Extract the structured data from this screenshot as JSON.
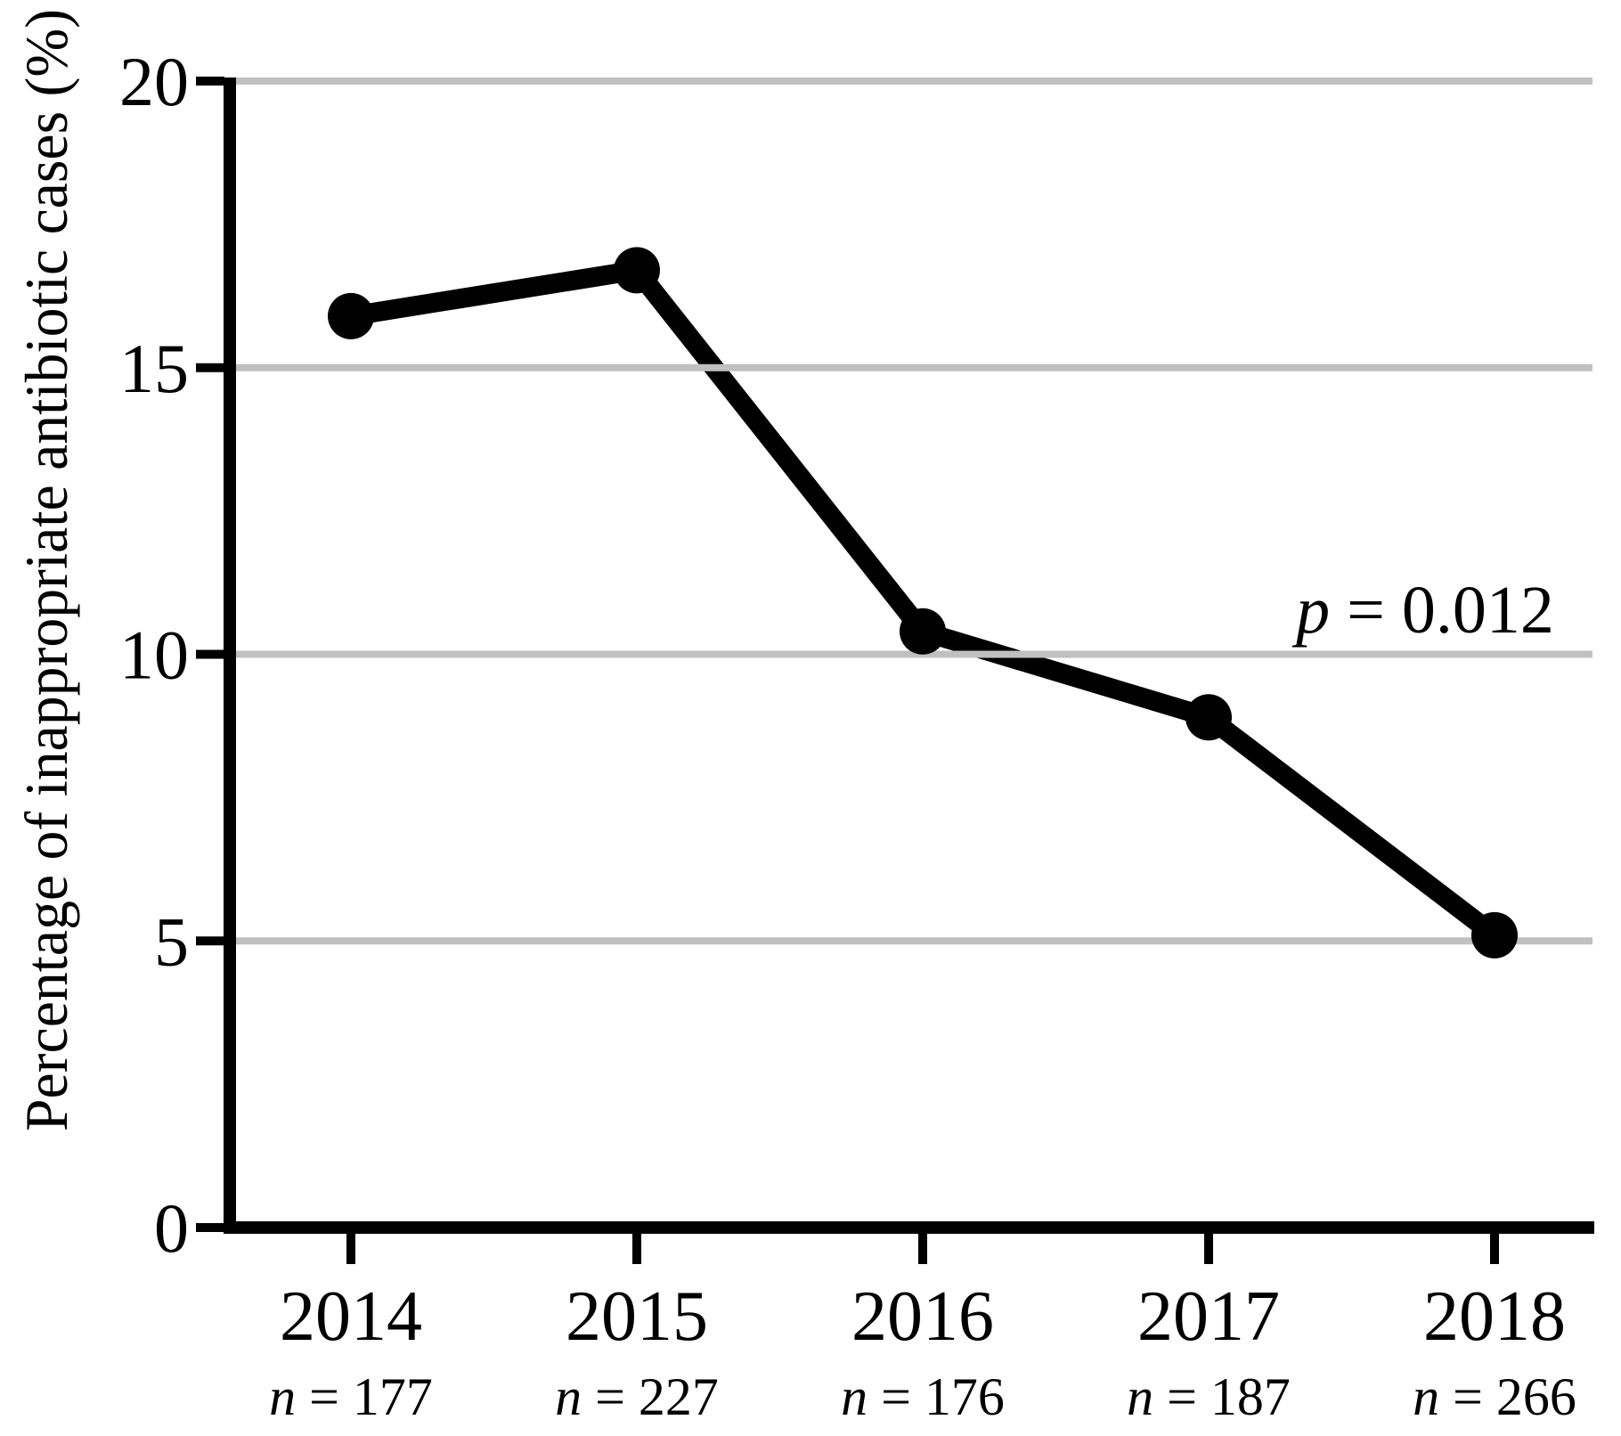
{
  "chart_data": {
    "type": "line",
    "title": "",
    "ylabel": "Percentage of inappropriate antibiotic cases (%)",
    "xlabel": "",
    "annotation": "p = 0.012",
    "annotation_italic": "p",
    "annotation_rest": " = 0.012",
    "categories": [
      "2014",
      "2015",
      "2016",
      "2017",
      "2018"
    ],
    "values": [
      15.9,
      16.7,
      10.4,
      8.9,
      5.1
    ],
    "sample_size_labels": [
      "n = 177",
      "n = 227",
      "n = 176",
      "n = 187",
      "n = 266"
    ],
    "sample_sizes": [
      177,
      227,
      176,
      187,
      266
    ],
    "ylim": [
      0,
      20
    ],
    "yticks": [
      0,
      5,
      10,
      15,
      20
    ],
    "gridlines": {
      "horizontal_at": [
        5,
        10,
        15,
        20
      ],
      "vertical": "none"
    },
    "legend": "none",
    "marker": "filled-circle",
    "series_name": "Inappropriate antibiotic cases"
  },
  "style": {
    "series_color": "#000000",
    "axis_color": "#000000",
    "grid_color": "#c0c0c0",
    "background": "#ffffff"
  }
}
